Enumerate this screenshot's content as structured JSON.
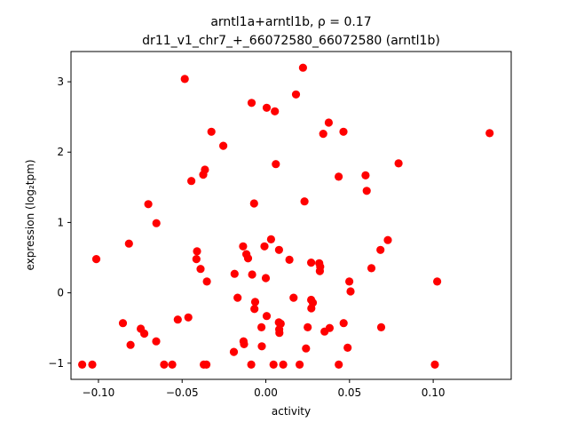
{
  "chart_data": {
    "type": "scatter",
    "title_line1": "arntl1a+arntl1b, ρ = 0.17",
    "title_line2": "dr11_v1_chr7_+_66072580_66072580 (arntl1b)",
    "xlabel": "activity",
    "ylabel": "expression (log₂tpm)",
    "xlim": [
      -0.1164,
      0.1466
    ],
    "ylim": [
      -1.23,
      3.43
    ],
    "x_ticks": [
      -0.1,
      -0.05,
      0.0,
      0.05,
      0.1
    ],
    "x_tick_labels": [
      "−0.10",
      "−0.05",
      "0.00",
      "0.05",
      "0.10"
    ],
    "y_ticks": [
      -1,
      0,
      1,
      2,
      3
    ],
    "y_tick_labels": [
      "−1",
      "0",
      "1",
      "2",
      "3"
    ],
    "grid": false,
    "marker_color": "#ff0000",
    "points": [
      {
        "x": -0.0484,
        "y": 3.04
      },
      {
        "x": 0.0222,
        "y": 3.2
      },
      {
        "x": 0.018,
        "y": 2.82
      },
      {
        "x": -0.0085,
        "y": 2.7
      },
      {
        "x": 0.0005,
        "y": 2.63
      },
      {
        "x": 0.0054,
        "y": 2.58
      },
      {
        "x": 0.0376,
        "y": 2.42
      },
      {
        "x": 0.0343,
        "y": 2.26
      },
      {
        "x": 0.0464,
        "y": 2.29
      },
      {
        "x": 0.1337,
        "y": 2.27
      },
      {
        "x": -0.0325,
        "y": 2.29
      },
      {
        "x": -0.0254,
        "y": 2.09
      },
      {
        "x": 0.006,
        "y": 1.83
      },
      {
        "x": 0.0793,
        "y": 1.84
      },
      {
        "x": 0.0435,
        "y": 1.65
      },
      {
        "x": 0.0596,
        "y": 1.67
      },
      {
        "x": 0.0603,
        "y": 1.45
      },
      {
        "x": -0.0364,
        "y": 1.75
      },
      {
        "x": -0.0374,
        "y": 1.68
      },
      {
        "x": -0.0445,
        "y": 1.59
      },
      {
        "x": -0.007,
        "y": 1.27
      },
      {
        "x": 0.0231,
        "y": 1.3
      },
      {
        "x": -0.0702,
        "y": 1.26
      },
      {
        "x": -0.0654,
        "y": 0.99
      },
      {
        "x": -0.1013,
        "y": 0.48
      },
      {
        "x": -0.0818,
        "y": 0.7
      },
      {
        "x": 0.0031,
        "y": 0.76
      },
      {
        "x": -0.0136,
        "y": 0.66
      },
      {
        "x": -0.0008,
        "y": 0.66
      },
      {
        "x": 0.0079,
        "y": 0.61
      },
      {
        "x": 0.0729,
        "y": 0.75
      },
      {
        "x": 0.0685,
        "y": 0.61
      },
      {
        "x": -0.0411,
        "y": 0.59
      },
      {
        "x": -0.0415,
        "y": 0.48
      },
      {
        "x": -0.0116,
        "y": 0.55
      },
      {
        "x": -0.0106,
        "y": 0.49
      },
      {
        "x": 0.0141,
        "y": 0.47
      },
      {
        "x": 0.0271,
        "y": 0.43
      },
      {
        "x": 0.0319,
        "y": 0.42
      },
      {
        "x": 0.0325,
        "y": 0.37
      },
      {
        "x": 0.0323,
        "y": 0.31
      },
      {
        "x": -0.039,
        "y": 0.34
      },
      {
        "x": 0.0631,
        "y": 0.35
      },
      {
        "x": -0.0187,
        "y": 0.27
      },
      {
        "x": -0.0082,
        "y": 0.26
      },
      {
        "x": -0.0,
        "y": 0.21
      },
      {
        "x": 0.0499,
        "y": 0.16
      },
      {
        "x": -0.0352,
        "y": 0.16
      },
      {
        "x": 0.1024,
        "y": 0.16
      },
      {
        "x": 0.0506,
        "y": 0.02
      },
      {
        "x": -0.0169,
        "y": -0.07
      },
      {
        "x": 0.0166,
        "y": -0.07
      },
      {
        "x": -0.0064,
        "y": -0.13
      },
      {
        "x": 0.0271,
        "y": -0.1
      },
      {
        "x": 0.0281,
        "y": -0.14
      },
      {
        "x": -0.0068,
        "y": -0.23
      },
      {
        "x": 0.0272,
        "y": -0.22
      },
      {
        "x": 0.0005,
        "y": -0.33
      },
      {
        "x": -0.0463,
        "y": -0.35
      },
      {
        "x": -0.0526,
        "y": -0.38
      },
      {
        "x": 0.0078,
        "y": -0.42
      },
      {
        "x": 0.0089,
        "y": -0.44
      },
      {
        "x": 0.0465,
        "y": -0.43
      },
      {
        "x": -0.0854,
        "y": -0.43
      },
      {
        "x": -0.0747,
        "y": -0.51
      },
      {
        "x": -0.0726,
        "y": -0.58
      },
      {
        "x": -0.0026,
        "y": -0.49
      },
      {
        "x": 0.008,
        "y": -0.52
      },
      {
        "x": 0.0081,
        "y": -0.57
      },
      {
        "x": 0.025,
        "y": -0.49
      },
      {
        "x": 0.0381,
        "y": -0.5
      },
      {
        "x": 0.0351,
        "y": -0.55
      },
      {
        "x": 0.0689,
        "y": -0.49
      },
      {
        "x": -0.0655,
        "y": -0.69
      },
      {
        "x": -0.0808,
        "y": -0.74
      },
      {
        "x": -0.0133,
        "y": -0.69
      },
      {
        "x": -0.013,
        "y": -0.73
      },
      {
        "x": -0.0024,
        "y": -0.76
      },
      {
        "x": 0.024,
        "y": -0.79
      },
      {
        "x": 0.0489,
        "y": -0.78
      },
      {
        "x": -0.0191,
        "y": -0.84
      },
      {
        "x": -0.1097,
        "y": -1.02
      },
      {
        "x": -0.1037,
        "y": -1.02
      },
      {
        "x": -0.0608,
        "y": -1.02
      },
      {
        "x": -0.0559,
        "y": -1.02
      },
      {
        "x": -0.0371,
        "y": -1.02
      },
      {
        "x": -0.0355,
        "y": -1.02
      },
      {
        "x": -0.0087,
        "y": -1.02
      },
      {
        "x": 0.0046,
        "y": -1.02
      },
      {
        "x": 0.0104,
        "y": -1.02
      },
      {
        "x": 0.0202,
        "y": -1.02
      },
      {
        "x": 0.0436,
        "y": -1.02
      },
      {
        "x": 0.101,
        "y": -1.02
      }
    ]
  }
}
